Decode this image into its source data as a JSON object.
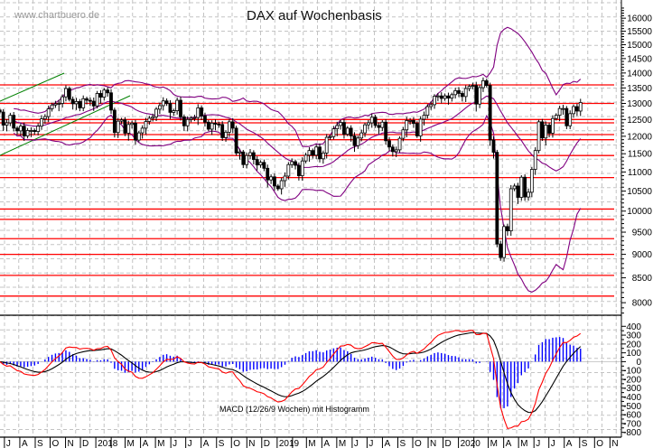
{
  "chart_data": [
    {
      "type": "candlestick",
      "title": "DAX auf Wochenbasis",
      "watermark": "www.chartbuero.de",
      "y_scale": "log",
      "ylim": [
        7700,
        16500
      ],
      "grid": true,
      "x_start_week": "2017-06-19",
      "x_month_labels": [
        "J",
        "A",
        "S",
        "O",
        "N",
        "D",
        "2018",
        "",
        "M",
        "A",
        "M",
        "J",
        "J",
        "A",
        "S",
        "O",
        "N",
        "D",
        "2019",
        "",
        "M",
        "A",
        "M",
        "J",
        "J",
        "A",
        "S",
        "O",
        "N",
        "D",
        "2020",
        "",
        "M",
        "A",
        "M",
        "J",
        "J",
        "A",
        "S",
        "O",
        "N"
      ],
      "y_tick_labels": [
        "8000",
        "8500",
        "9000",
        "9500",
        "10000",
        "10500",
        "11000",
        "11500",
        "12000",
        "12500",
        "13000",
        "13500",
        "14000",
        "14500",
        "15000",
        "15500",
        "16000"
      ],
      "weekly_close": [
        12730,
        12330,
        12400,
        12630,
        12240,
        12160,
        12300,
        12010,
        12170,
        12170,
        12140,
        12300,
        12520,
        12590,
        12830,
        12950,
        12990,
        13000,
        13210,
        13480,
        13130,
        12990,
        13060,
        12860,
        13150,
        13100,
        13070,
        12920,
        13320,
        13200,
        13430,
        13340,
        12790,
        12110,
        12450,
        12490,
        12090,
        12350,
        12390,
        11890,
        12100,
        12240,
        12440,
        12540,
        12580,
        12820,
        12930,
        13080,
        13000,
        12720,
        12770,
        13100,
        12580,
        12310,
        12500,
        12540,
        12560,
        12860,
        12610,
        12420,
        12210,
        12390,
        12360,
        12350,
        11960,
        12120,
        12430,
        12240,
        11520,
        11550,
        11200,
        11450,
        11530,
        11340,
        11190,
        11260,
        11100,
        10790,
        10870,
        10630,
        10560,
        10770,
        10890,
        11200,
        11280,
        11180,
        10900,
        11300,
        11460,
        11590,
        11460,
        11690,
        11360,
        11520,
        11970,
        11990,
        12220,
        12320,
        12410,
        12060,
        12240,
        12010,
        11730,
        11950,
        12100,
        12340,
        12400,
        12570,
        12320,
        12260,
        12420,
        11870,
        11690,
        11560,
        11610,
        11940,
        12190,
        12470,
        12470,
        12380,
        12010,
        12510,
        12630,
        12900,
        12960,
        13230,
        13240,
        13160,
        13240,
        13170,
        13280,
        13410,
        13320,
        13220,
        13480,
        13550,
        13580,
        12980,
        13510,
        13740,
        13580,
        11890,
        11540,
        9230,
        8930,
        9630,
        9530,
        10560,
        10630,
        10340,
        10860,
        10350,
        10470,
        11070,
        11590,
        12430,
        11950,
        12330,
        12090,
        12530,
        12630,
        12840,
        12840,
        12310,
        12680,
        12900,
        12760,
        13030
      ],
      "support_resistance_levels": [
        13600,
        13000,
        12500,
        12400,
        12050,
        11900,
        11450,
        10850,
        10050,
        9800,
        9350,
        9000,
        8550,
        8130
      ],
      "overlays": {
        "bollinger_bands": {
          "period": 20,
          "stddev": 2
        }
      },
      "colors": {
        "levels": "#ff0000",
        "bands": "#800080",
        "trend_channel": "#008000",
        "down_candle": "#000000",
        "up_candle": "#ffffff"
      }
    },
    {
      "type": "line",
      "label": "MACD (12/26/9 Wochen) mit Histogramm",
      "ylim": [
        -850,
        450
      ],
      "y_tick_labels": [
        "400",
        "300",
        "200",
        "100",
        "0",
        "-100",
        "-200",
        "-300",
        "-400",
        "-500",
        "-600",
        "-700",
        "-800"
      ],
      "series": [
        {
          "indicator": "macd",
          "color": "#ff0000"
        },
        {
          "indicator": "signal",
          "color": "#000000"
        },
        {
          "indicator": "histogram",
          "color": "#0000ff"
        }
      ]
    }
  ]
}
